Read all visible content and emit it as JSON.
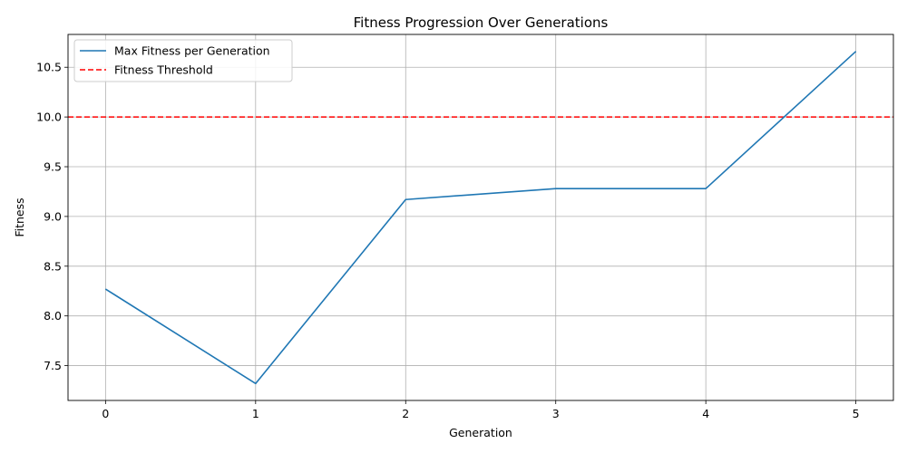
{
  "chart_data": {
    "type": "line",
    "title": "Fitness Progression Over Generations",
    "xlabel": "Generation",
    "ylabel": "Fitness",
    "x": [
      0,
      1,
      2,
      3,
      4,
      5
    ],
    "xlim": [
      -0.25,
      5.25
    ],
    "ylim": [
      7.15,
      10.83
    ],
    "x_ticks": [
      0,
      1,
      2,
      3,
      4,
      5
    ],
    "x_tick_labels": [
      "0",
      "1",
      "2",
      "3",
      "4",
      "5"
    ],
    "y_ticks": [
      7.5,
      8.0,
      8.5,
      9.0,
      9.5,
      10.0,
      10.5
    ],
    "y_tick_labels": [
      "7.5",
      "8.0",
      "8.5",
      "9.0",
      "9.5",
      "10.0",
      "10.5"
    ],
    "grid": true,
    "legend_position": "top-left",
    "series": [
      {
        "name": "Max Fitness per Generation",
        "values": [
          8.27,
          7.32,
          9.17,
          9.28,
          9.28,
          10.66
        ],
        "color": "#1f77b4",
        "style": "solid"
      }
    ],
    "reference_lines": [
      {
        "name": "Fitness Threshold",
        "y": 10.0,
        "color": "#ff0000",
        "style": "dashed"
      }
    ]
  }
}
